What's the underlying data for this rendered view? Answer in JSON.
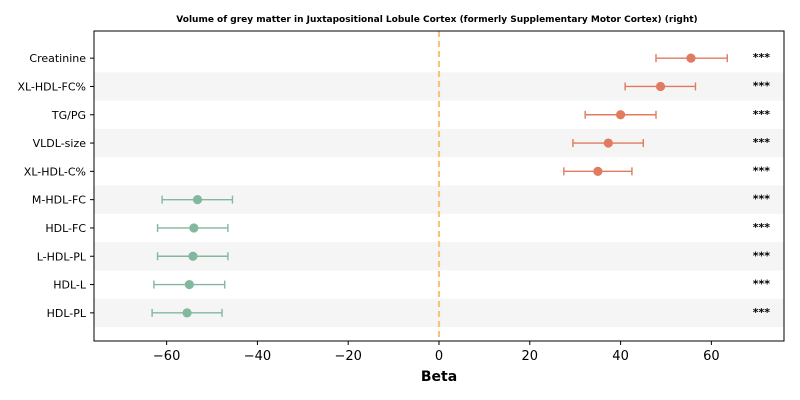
{
  "chart_data": {
    "type": "scatter",
    "title": "Volume of grey matter in Juxtapositional Lobule Cortex (formerly Supplementary Motor Cortex) (right)",
    "xlabel": "Beta",
    "xlim": [
      -76,
      76
    ],
    "xticks": [
      -60,
      -40,
      -20,
      0,
      20,
      40,
      60
    ],
    "xtick_labels": [
      "−60",
      "−40",
      "−20",
      "0",
      "20",
      "40",
      "60"
    ],
    "reference_line": 0,
    "grid": false,
    "legend": "none",
    "colors": {
      "positive": "#e07b5f",
      "negative": "#82b89e",
      "reference": "#f5c67a",
      "band": "#f5f5f5"
    },
    "categories": [
      "Creatinine",
      "XL-HDL-FC%",
      "TG/PG",
      "VLDL-size",
      "XL-HDL-C%",
      "M-HDL-FC",
      "HDL-FC",
      "L-HDL-PL",
      "HDL-L",
      "HDL-PL"
    ],
    "beta": [
      55.5,
      48.8,
      40.0,
      37.3,
      35.0,
      -53.2,
      -54.0,
      -54.2,
      -55.0,
      -55.5
    ],
    "ci_low": [
      47.8,
      41.0,
      32.2,
      29.5,
      27.5,
      -61.0,
      -62.0,
      -62.0,
      -62.8,
      -63.2
    ],
    "ci_high": [
      63.5,
      56.5,
      47.8,
      45.0,
      42.5,
      -45.5,
      -46.5,
      -46.5,
      -47.2,
      -47.8
    ],
    "significance": [
      "***",
      "***",
      "***",
      "***",
      "***",
      "***",
      "***",
      "***",
      "***",
      "***"
    ]
  }
}
